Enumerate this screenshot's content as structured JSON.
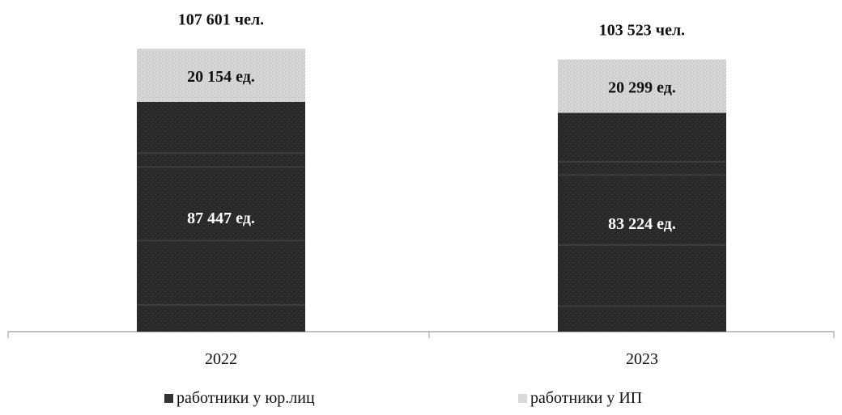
{
  "chart_data": {
    "type": "bar",
    "stacked": true,
    "categories": [
      "2022",
      "2023"
    ],
    "series": [
      {
        "name": "работники у юр.лиц",
        "values": [
          87447,
          83224
        ],
        "labels": [
          "87 447 ед.",
          "83 224 ед."
        ],
        "color": "#2b2b2b"
      },
      {
        "name": "работники у ИП",
        "values": [
          20154,
          20299
        ],
        "labels": [
          "20 154 ед.",
          "20 299 ед."
        ],
        "color": "#d2d2d2"
      }
    ],
    "totals": [
      "107 601 чел.",
      "103 523 чел."
    ],
    "ylim": [
      0,
      120000
    ],
    "grid": false,
    "legend_position": "bottom",
    "title": "",
    "xlabel": "",
    "ylabel": ""
  }
}
